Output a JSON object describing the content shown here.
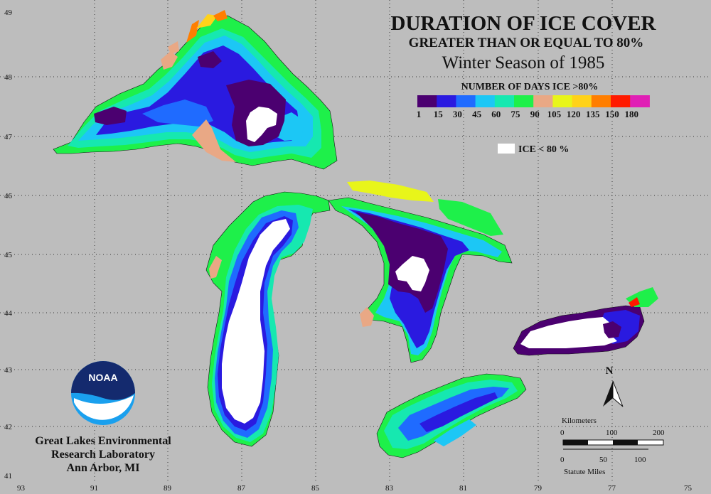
{
  "title": {
    "line1": "DURATION OF ICE COVER",
    "line2": "GREATER THAN OR EQUAL TO 80%",
    "line3": "Winter Season of 1985"
  },
  "legend": {
    "heading": "NUMBER OF DAYS ICE >80%",
    "ticks": [
      "1",
      "15",
      "30",
      "45",
      "60",
      "75",
      "90",
      "105",
      "120",
      "135",
      "150",
      "180"
    ],
    "colors": [
      "#4b0070",
      "#2a1ae0",
      "#1f6bff",
      "#1cc7f5",
      "#16e8b0",
      "#1ef04a",
      "#e9a885",
      "#e8f51a",
      "#ffd21a",
      "#ff7e00",
      "#ff1a00",
      "#e01fb5"
    ],
    "ice_label": "ICE < 80 %"
  },
  "axes": {
    "latitude": [
      "49",
      "48",
      "47",
      "46",
      "45",
      "44",
      "43",
      "42",
      "41"
    ],
    "longitude": [
      "93",
      "91",
      "89",
      "87",
      "85",
      "83",
      "81",
      "79",
      "77",
      "75"
    ]
  },
  "compass": {
    "label": "N"
  },
  "scale": {
    "km_label": "Kilometers",
    "km_ticks": [
      "0",
      "100",
      "200"
    ],
    "mi_label": "Statute Miles",
    "mi_ticks": [
      "0",
      "50",
      "100"
    ]
  },
  "credit": {
    "logo_text": "NOAA",
    "line1": "Great Lakes Environmental",
    "line2": "Research Laboratory",
    "line3": "Ann Arbor, MI"
  },
  "colors": {
    "background": "#bdbdbd",
    "ice_free": "#ffffff"
  }
}
